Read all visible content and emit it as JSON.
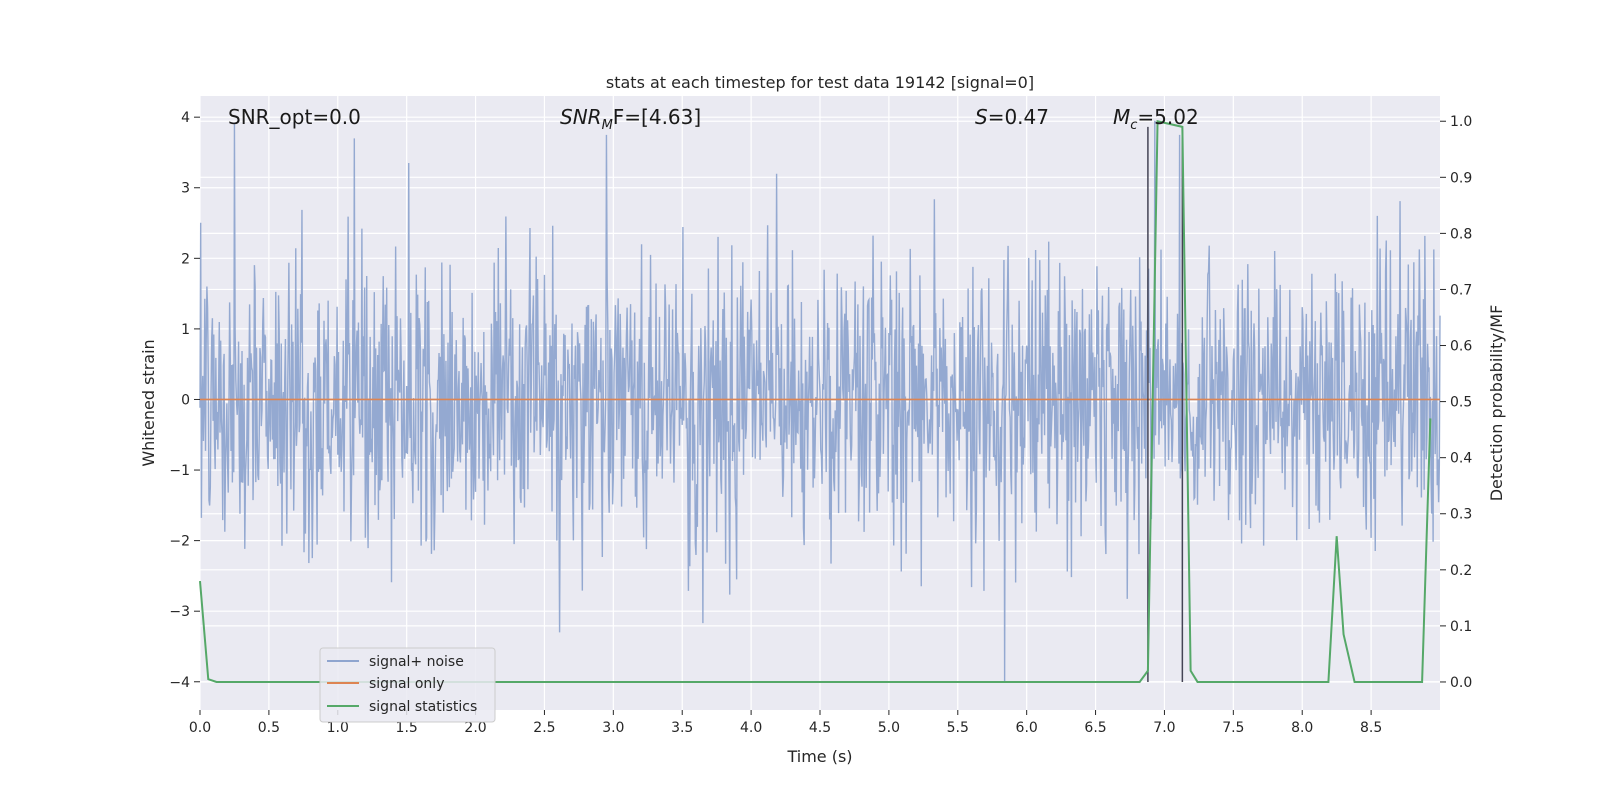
{
  "chart_data": {
    "type": "line",
    "title": "stats at each timestep for test data 19142 [signal=0]",
    "xlabel": "Time (s)",
    "ylabel_left": "Whitened strain",
    "ylabel_right": "Detection probability/MF",
    "xlim": [
      0,
      9.0
    ],
    "ylim_left": [
      -4.4,
      4.3
    ],
    "ylim_right": [
      -0.05,
      1.045
    ],
    "x_ticks": [
      "0.0",
      "0.5",
      "1.0",
      "1.5",
      "2.0",
      "2.5",
      "3.0",
      "3.5",
      "4.0",
      "4.5",
      "5.0",
      "5.5",
      "6.0",
      "6.5",
      "7.0",
      "7.5",
      "8.0",
      "8.5"
    ],
    "y_ticks_left": [
      "4",
      "3",
      "2",
      "1",
      "0",
      "−1",
      "−2",
      "−3",
      "−4"
    ],
    "y_ticks_right": [
      "1.0",
      "0.9",
      "0.8",
      "0.7",
      "0.6",
      "0.5",
      "0.4",
      "0.3",
      "0.2",
      "0.1",
      "0.0"
    ],
    "grid": true,
    "legend_position": "lower-left",
    "annotations": {
      "snr_opt": "SNR_opt=0.0",
      "snr_mf_main": "SNR",
      "snr_mf_sub": "M",
      "snr_mf_rest": "F=[4.63]",
      "s_main": "S",
      "s_rest": "=0.47",
      "mc_main": "M",
      "mc_sub": "c",
      "mc_rest": "=5.02"
    },
    "vertical_markers_x": [
      6.88,
      7.13
    ],
    "series": [
      {
        "name": "signal+ noise",
        "color": "#8fa5cf",
        "axis": "left",
        "sample_rate_hz": 200,
        "noise_sigma": 1.0,
        "notable_extremes": [
          [
            0.25,
            3.9
          ],
          [
            1.12,
            3.7
          ],
          [
            2.95,
            3.75
          ],
          [
            5.84,
            -4.0
          ],
          [
            6.93,
            3.95
          ],
          [
            7.11,
            3.75
          ]
        ]
      },
      {
        "name": "signal only",
        "color": "#dd8452",
        "axis": "left",
        "constant_value": 0.0
      },
      {
        "name": "signal statistics",
        "color": "#55a868",
        "axis": "right",
        "x": [
          0.0,
          0.06,
          0.12,
          6.82,
          6.88,
          6.95,
          7.13,
          7.19,
          7.24,
          8.19,
          8.25,
          8.3,
          8.38,
          8.87,
          8.93
        ],
        "y": [
          0.18,
          0.005,
          0.0,
          0.0,
          0.02,
          1.0,
          0.99,
          0.02,
          0.0,
          0.0,
          0.26,
          0.085,
          0.0,
          0.0,
          0.47
        ]
      }
    ]
  }
}
